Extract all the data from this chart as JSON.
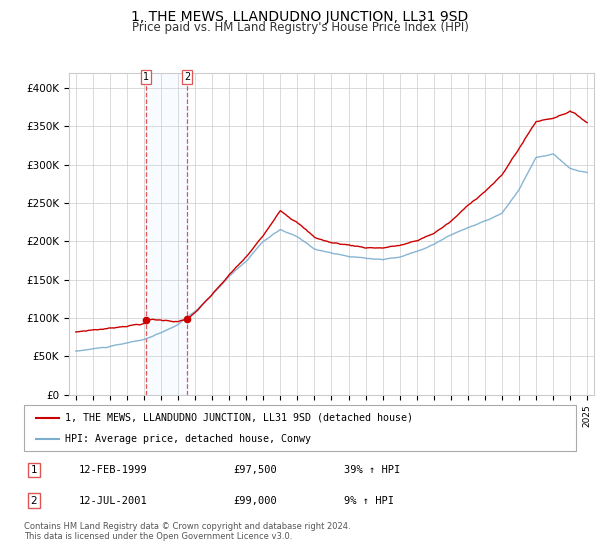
{
  "title": "1, THE MEWS, LLANDUDNO JUNCTION, LL31 9SD",
  "subtitle": "Price paid vs. HM Land Registry's House Price Index (HPI)",
  "legend_line1": "1, THE MEWS, LLANDUDNO JUNCTION, LL31 9SD (detached house)",
  "legend_line2": "HPI: Average price, detached house, Conwy",
  "footer": "Contains HM Land Registry data © Crown copyright and database right 2024.\nThis data is licensed under the Open Government Licence v3.0.",
  "sale1_label": "1",
  "sale1_date": "12-FEB-1999",
  "sale1_price": "£97,500",
  "sale1_hpi": "39% ↑ HPI",
  "sale2_label": "2",
  "sale2_date": "12-JUL-2001",
  "sale2_price": "£99,000",
  "sale2_hpi": "9% ↑ HPI",
  "sale1_year": 1999.12,
  "sale2_year": 2001.54,
  "sale1_value": 97500,
  "sale2_value": 99000,
  "ylim_min": 0,
  "ylim_max": 420000,
  "yticks": [
    0,
    50000,
    100000,
    150000,
    200000,
    250000,
    300000,
    350000,
    400000
  ],
  "ytick_labels": [
    "£0",
    "£50K",
    "£100K",
    "£150K",
    "£200K",
    "£250K",
    "£300K",
    "£350K",
    "£400K"
  ],
  "red_color": "#cc0000",
  "blue_color": "#7aadcf",
  "vline_color": "#dd5555",
  "bg_shade_color": "#ddeeff",
  "grid_color": "#cccccc",
  "title_fontsize": 10,
  "subtitle_fontsize": 8.5,
  "axis_fontsize": 7.5
}
